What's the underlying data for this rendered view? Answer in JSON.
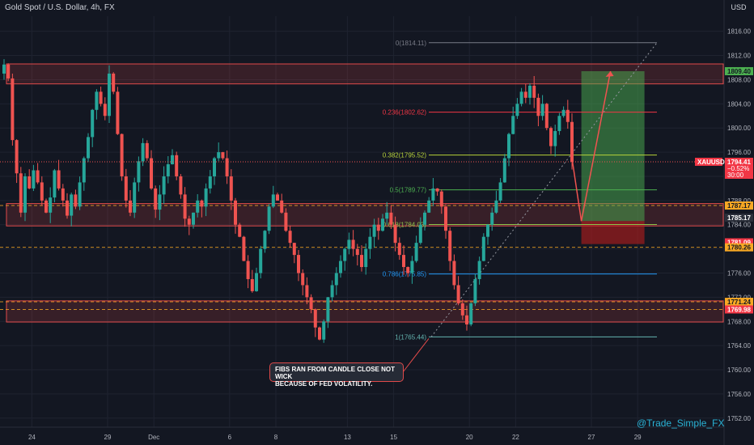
{
  "header": {
    "symbol_title": "Gold Spot / U.S. Dollar, 4h, FX",
    "currency": "USD"
  },
  "watermark": "@Trade_Simple_FX",
  "annotation": {
    "line1": "FIBS RAN FROM CANDLE CLOSE NOT WICK",
    "line2": "BECAUSE OF FED VOLATILITY."
  },
  "colors": {
    "background": "#131722",
    "bull": "#26a69a",
    "bear": "#ef5350",
    "zone": "#e04a4a",
    "target": "#4caf50",
    "stop": "#b71c1c",
    "fib_0": "#787b86",
    "fib_236": "#f23645",
    "fib_382": "#b8d33a",
    "fib_05": "#4caf50",
    "fib_618": "#8bc34a",
    "fib_786": "#2196f3",
    "fib_1": "#64b5b0",
    "price_tag_red": "#f23645",
    "price_tag_orange": "#f7a823",
    "watermark": "#2ab3d6"
  },
  "chart_data": {
    "type": "candlestick",
    "symbol": "XAUUSD",
    "timeframe": "4h",
    "y_axis_ticks": [
      1752,
      1756,
      1760,
      1764,
      1768,
      1772,
      1776,
      1780,
      1784,
      1788,
      1792,
      1796,
      1800,
      1804,
      1808,
      1812,
      1816
    ],
    "ylim": [
      1750.5,
      1818.5
    ],
    "x_axis_ticks": [
      "24",
      "29",
      "Dec",
      "6",
      "8",
      "13",
      "15",
      "20",
      "22",
      "27",
      "29"
    ],
    "x_tick_bars": [
      7,
      25,
      36,
      54,
      65,
      82,
      93,
      111,
      122,
      140,
      151
    ],
    "bar_count": 160,
    "candle_closes": [
      1810.5,
      1808.2,
      1798.0,
      1792.5,
      1786.0,
      1792.0,
      1790.0,
      1793.0,
      1791.0,
      1788.0,
      1786.0,
      1788.5,
      1793.0,
      1790.0,
      1788.0,
      1785.5,
      1789.0,
      1787.0,
      1791.0,
      1795.0,
      1798.5,
      1803.0,
      1806.0,
      1804.0,
      1802.0,
      1809.0,
      1806.0,
      1799.0,
      1792.0,
      1788.0,
      1786.0,
      1791.0,
      1794.5,
      1797.5,
      1795.0,
      1790.0,
      1786.5,
      1789.0,
      1792.0,
      1794.0,
      1795.5,
      1792.0,
      1789.0,
      1785.0,
      1784.0,
      1786.0,
      1788.0,
      1787.0,
      1790.0,
      1792.0,
      1795.0,
      1796.0,
      1795.0,
      1792.0,
      1788.0,
      1784.0,
      1782.0,
      1778.0,
      1775.0,
      1773.0,
      1776.0,
      1780.0,
      1783.0,
      1787.0,
      1789.0,
      1788.0,
      1786.0,
      1783.0,
      1781.0,
      1779.0,
      1776.0,
      1774.0,
      1772.0,
      1770.0,
      1767.0,
      1765.0,
      1768.0,
      1772.0,
      1774.0,
      1776.0,
      1778.0,
      1780.0,
      1781.5,
      1780.0,
      1779.0,
      1777.0,
      1780.0,
      1782.0,
      1784.0,
      1783.0,
      1785.0,
      1786.0,
      1784.0,
      1781.0,
      1779.0,
      1777.0,
      1776.0,
      1778.0,
      1781.0,
      1784.0,
      1786.0,
      1788.0,
      1790.0,
      1789.5,
      1787.0,
      1783.0,
      1778.0,
      1774.0,
      1771.0,
      1769.0,
      1767.5,
      1771.0,
      1775.0,
      1778.0,
      1782.0,
      1784.0,
      1786.0,
      1788.0,
      1791.0,
      1795.0,
      1799.0,
      1802.0,
      1804.0,
      1806.0,
      1805.0,
      1807.0,
      1805.0,
      1802.0,
      1804.0,
      1800.0,
      1797.0,
      1799.5,
      1802.0,
      1803.0,
      1801.0,
      1794.4
    ],
    "candles_note": "representative OHLC path; highs/lows derived in script",
    "key_levels": {
      "fib_0": {
        "label": "0(1814.11)",
        "value": 1814.11
      },
      "fib_0236": {
        "label": "0.236(1802.62)",
        "value": 1802.62
      },
      "fib_0382": {
        "label": "0.382(1795.52)",
        "value": 1795.52
      },
      "fib_05": {
        "label": "0.5(1789.77)",
        "value": 1789.77
      },
      "fib_0618": {
        "label": "0.618(1784.03)",
        "value": 1784.03
      },
      "fib_0786": {
        "label": "0.786(1775.85)",
        "value": 1775.85
      },
      "fib_1": {
        "label": "1(1765.44)",
        "value": 1765.44
      }
    },
    "zones": [
      {
        "name": "supply",
        "top": 1810.6,
        "bottom": 1807.3
      },
      {
        "name": "demand-upper",
        "top": 1787.5,
        "bottom": 1783.8
      },
      {
        "name": "demand-lower",
        "top": 1771.4,
        "bottom": 1767.9
      }
    ],
    "dashed_levels": [
      1787.17,
      1780.26,
      1771.24,
      1769.98
    ],
    "position": {
      "entry": 1784.6,
      "target": 1809.4,
      "stop": 1780.8,
      "entry_bar": 133,
      "end_bar": 148
    },
    "price_tags": [
      {
        "label": "1809.40",
        "value": 1809.4,
        "style": "green"
      },
      {
        "label": "1794.41",
        "value": 1794.41,
        "style": "red",
        "extra": [
          "−0.52%",
          "30:00"
        ],
        "symbol_label": "XAUUSD"
      },
      {
        "label": "1787.17",
        "value": 1787.17,
        "style": "orange"
      },
      {
        "label": "1785.17",
        "value": 1785.17,
        "style": "dark"
      },
      {
        "label": "1781.09",
        "value": 1781.09,
        "style": "red"
      },
      {
        "label": "1780.26",
        "value": 1780.26,
        "style": "orange"
      },
      {
        "label": "1771.24",
        "value": 1771.24,
        "style": "orange"
      },
      {
        "label": "1769.98",
        "value": 1769.98,
        "style": "red"
      }
    ],
    "projection": {
      "from": 1795.0,
      "via": 1784.6,
      "to": 1809.4
    }
  }
}
